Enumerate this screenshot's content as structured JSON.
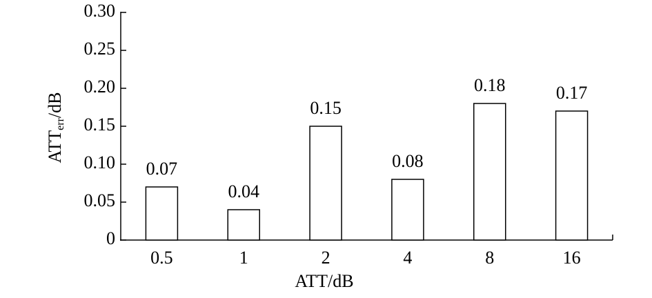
{
  "chart_data": {
    "type": "bar",
    "x_label": "ATT/dB",
    "y_label": "ATT",
    "y_label_sub": "err",
    "y_label_suffix": "/dB",
    "categories": [
      "0.5",
      "1",
      "2",
      "4",
      "8",
      "16"
    ],
    "values": [
      0.07,
      0.04,
      0.15,
      0.08,
      0.18,
      0.17
    ],
    "color": "#ffffff",
    "ylim": [
      0,
      0.3
    ],
    "yticks": [
      0,
      0.05,
      {
        "value": 0.1,
        "label": "0.10"
      },
      0.15,
      {
        "value": 0.2,
        "label": "0.20"
      },
      0.25,
      {
        "value": 0.3,
        "label": "0.30"
      }
    ],
    "grid": false
  }
}
